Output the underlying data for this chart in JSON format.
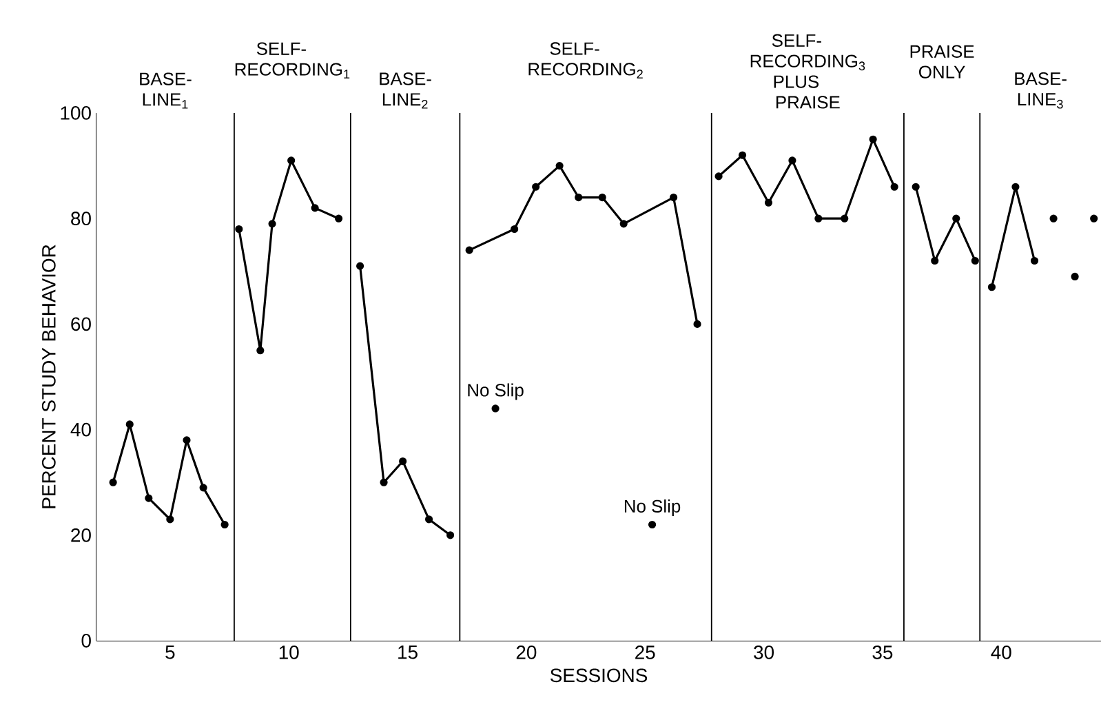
{
  "chart_data": {
    "type": "line",
    "xlabel": "SESSIONS",
    "ylabel": "PERCENT STUDY BEHAVIOR",
    "xlim": [
      1.9,
      44.2
    ],
    "ylim": [
      0,
      100
    ],
    "xticks": [
      5,
      10,
      15,
      20,
      25,
      30,
      35,
      40
    ],
    "yticks": [
      0,
      20,
      40,
      60,
      80,
      100
    ],
    "marker": "circle",
    "line_style": "solid",
    "series": [
      {
        "color": "#000000",
        "x": [
          2.6,
          3.3,
          4.1,
          5.0,
          5.7,
          6.4,
          7.3
        ],
        "values": [
          30,
          41,
          27,
          23,
          38,
          29,
          22
        ]
      },
      {
        "color": "#000000",
        "x": [
          7.9,
          8.8,
          9.3,
          10.1,
          11.1,
          12.1
        ],
        "values": [
          78,
          55,
          79,
          91,
          82,
          80
        ]
      },
      {
        "color": "#000000",
        "x": [
          13.0,
          14.0,
          14.8,
          15.9,
          16.8
        ],
        "values": [
          71,
          30,
          34,
          23,
          20
        ]
      },
      {
        "color": "#000000",
        "x": [
          17.6,
          19.5,
          20.4,
          21.4,
          22.2,
          23.2,
          24.1,
          26.2,
          27.2
        ],
        "values": [
          74,
          78,
          86,
          90,
          84,
          84,
          79,
          84,
          60
        ]
      },
      {
        "type": "scatter",
        "color": "#000000",
        "x": [
          18.7,
          25.3
        ],
        "values": [
          44,
          22
        ]
      },
      {
        "color": "#000000",
        "x": [
          28.1,
          29.1,
          30.2,
          31.2,
          32.3,
          33.4,
          34.6,
          35.5
        ],
        "values": [
          88,
          92,
          83,
          91,
          80,
          80,
          95,
          86
        ]
      },
      {
        "color": "#000000",
        "x": [
          36.4,
          37.2,
          38.1,
          38.9
        ],
        "values": [
          86,
          72,
          80,
          72
        ]
      },
      {
        "color": "#000000",
        "x": [
          39.6,
          40.6,
          41.4
        ],
        "values": [
          67,
          86,
          72
        ]
      },
      {
        "type": "scatter",
        "color": "#000000",
        "x": [
          42.2,
          43.1,
          43.9
        ],
        "values": [
          80,
          69,
          80
        ]
      }
    ],
    "ref_lines": [
      {
        "axis": "x",
        "value": 7.7,
        "color": "#000000"
      },
      {
        "axis": "x",
        "value": 12.6,
        "color": "#000000"
      },
      {
        "axis": "x",
        "value": 17.2,
        "color": "#000000"
      },
      {
        "axis": "x",
        "value": 27.8,
        "color": "#000000"
      },
      {
        "axis": "x",
        "value": 35.9,
        "color": "#000000"
      },
      {
        "axis": "x",
        "value": 39.1,
        "color": "#000000"
      }
    ],
    "bands": [
      {
        "axis": "x",
        "from": 1.9,
        "to": 7.7,
        "label": "BASE-LINE$_{1}$",
        "color": "#ffffff"
      },
      {
        "axis": "x",
        "from": 7.7,
        "to": 12.6,
        "label": "SELF-RECORDING$_{1}$",
        "color": "#ffffff"
      },
      {
        "axis": "x",
        "from": 12.6,
        "to": 17.2,
        "label": "BASE-LINE$_{2}$",
        "color": "#ffffff"
      },
      {
        "axis": "x",
        "from": 17.2,
        "to": 27.8,
        "label": "SELF-RECORDING$_{2}$",
        "color": "#ffffff"
      },
      {
        "axis": "x",
        "from": 27.8,
        "to": 35.9,
        "label": "SELF-RECORDING$_{3}$ PLUS PRAISE",
        "color": "#ffffff"
      },
      {
        "axis": "x",
        "from": 35.9,
        "to": 39.1,
        "label": "PRAISE ONLY",
        "color": "#ffffff"
      },
      {
        "axis": "x",
        "from": 39.1,
        "to": 44.2,
        "label": "BASE-LINE$_{3}$",
        "color": "#ffffff"
      }
    ],
    "annotations": [
      {
        "text": "No Slip",
        "x": 18.7,
        "y": 44
      },
      {
        "text": "No Slip",
        "x": 25.3,
        "y": 22
      }
    ]
  }
}
